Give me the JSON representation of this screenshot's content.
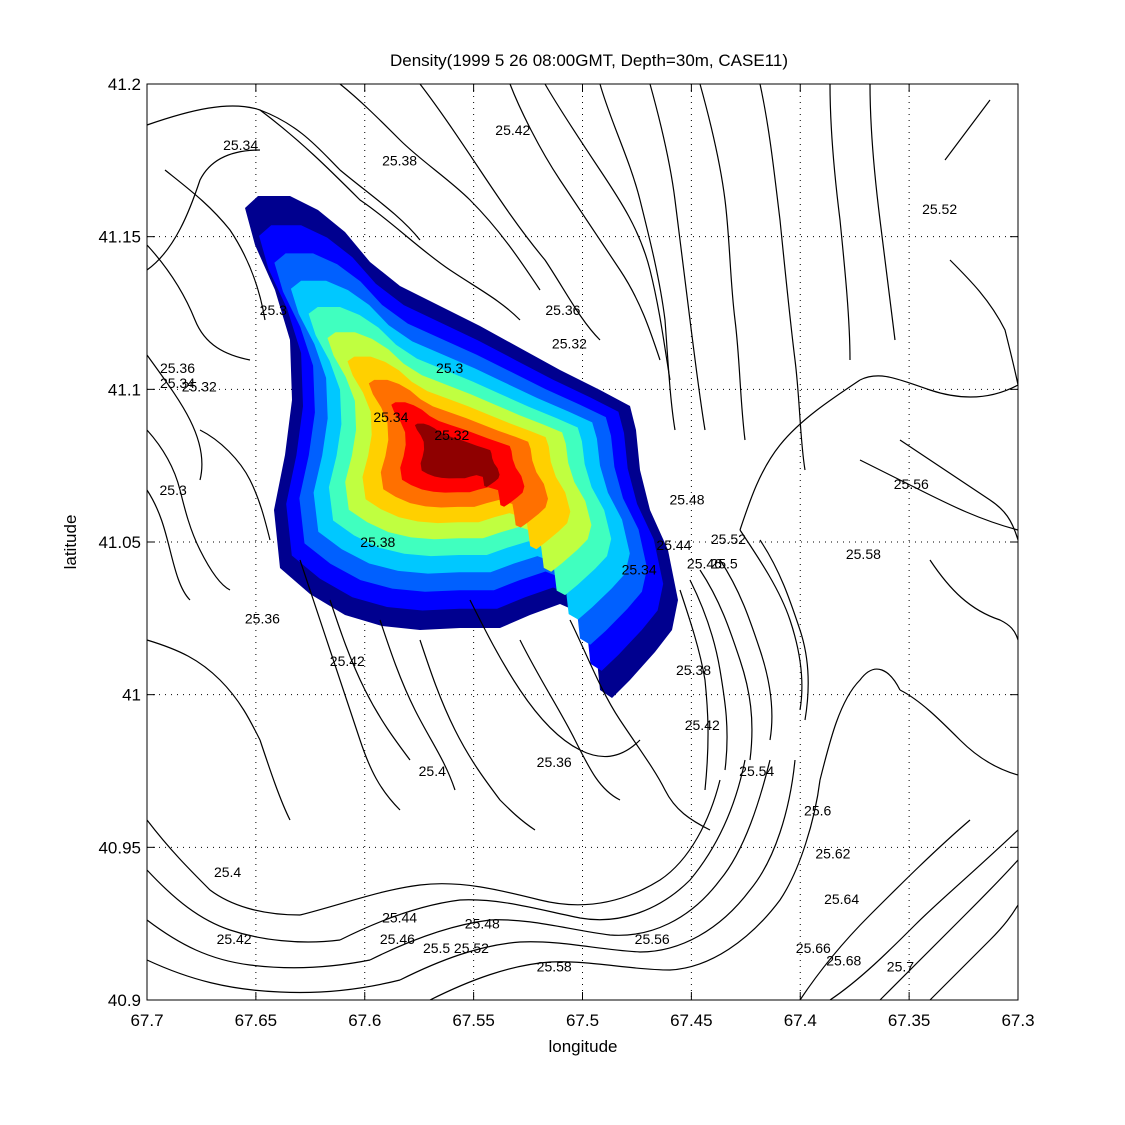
{
  "chart_data": {
    "type": "contour",
    "title": "Density(1999   5   26 08:00GMT, Depth=30m, CASE11)",
    "xlabel": "longitude",
    "ylabel": "latitude",
    "xlim": [
      67.7,
      67.3
    ],
    "ylim": [
      40.9,
      41.2
    ],
    "x_reversed": true,
    "grid": true,
    "xticks": [
      67.7,
      67.65,
      67.6,
      67.55,
      67.5,
      67.45,
      67.4,
      67.35,
      67.3
    ],
    "xtick_labels": [
      "67.7",
      "67.65",
      "67.6",
      "67.55",
      "67.5",
      "67.45",
      "67.4",
      "67.35",
      "67.3"
    ],
    "yticks": [
      40.9,
      40.95,
      41.0,
      41.05,
      41.1,
      41.15,
      41.2
    ],
    "ytick_labels": [
      "40.9",
      "40.95",
      "41",
      "41.05",
      "41.1",
      "41.15",
      "41.2"
    ],
    "filled_field": {
      "colors": [
        "#00008f",
        "#0000ff",
        "#0060ff",
        "#00c8ff",
        "#40ffbf",
        "#c0ff40",
        "#ffd000",
        "#ff7000",
        "#ff0000",
        "#8f0000"
      ],
      "levels": [
        1,
        2,
        3,
        4,
        5,
        6,
        7,
        8,
        9,
        10
      ],
      "center": {
        "lon": 67.558,
        "lat": 41.078
      }
    },
    "contour_labels": [
      {
        "text": "25.34",
        "lon": 67.657,
        "lat": 41.18
      },
      {
        "text": "25.38",
        "lon": 67.584,
        "lat": 41.175
      },
      {
        "text": "25.42",
        "lon": 67.532,
        "lat": 41.185
      },
      {
        "text": "25.52",
        "lon": 67.336,
        "lat": 41.159
      },
      {
        "text": "25.3",
        "lon": 67.642,
        "lat": 41.126
      },
      {
        "text": "25.36",
        "lon": 67.509,
        "lat": 41.126
      },
      {
        "text": "25.32",
        "lon": 67.506,
        "lat": 41.115
      },
      {
        "text": "25.36",
        "lon": 67.686,
        "lat": 41.107
      },
      {
        "text": "25.34",
        "lon": 67.686,
        "lat": 41.102
      },
      {
        "text": "25.32",
        "lon": 67.676,
        "lat": 41.101
      },
      {
        "text": "25.3",
        "lon": 67.561,
        "lat": 41.107
      },
      {
        "text": "25.34",
        "lon": 67.588,
        "lat": 41.091
      },
      {
        "text": "25.32",
        "lon": 67.56,
        "lat": 41.085
      },
      {
        "text": "25.3",
        "lon": 67.688,
        "lat": 41.067
      },
      {
        "text": "25.48",
        "lon": 67.452,
        "lat": 41.064
      },
      {
        "text": "25.56",
        "lon": 67.349,
        "lat": 41.069
      },
      {
        "text": "25.52",
        "lon": 67.433,
        "lat": 41.051
      },
      {
        "text": "25.38",
        "lon": 67.594,
        "lat": 41.05
      },
      {
        "text": "25.44",
        "lon": 67.458,
        "lat": 41.049
      },
      {
        "text": "25.46",
        "lon": 67.444,
        "lat": 41.043
      },
      {
        "text": "25.5",
        "lon": 67.435,
        "lat": 41.043
      },
      {
        "text": "25.34",
        "lon": 67.474,
        "lat": 41.041
      },
      {
        "text": "25.58",
        "lon": 67.371,
        "lat": 41.046
      },
      {
        "text": "25.36",
        "lon": 67.647,
        "lat": 41.025
      },
      {
        "text": "25.42",
        "lon": 67.608,
        "lat": 41.011
      },
      {
        "text": "25.38",
        "lon": 67.449,
        "lat": 41.008
      },
      {
        "text": "25.42",
        "lon": 67.445,
        "lat": 40.99
      },
      {
        "text": "25.36",
        "lon": 67.513,
        "lat": 40.978
      },
      {
        "text": "25.4",
        "lon": 67.569,
        "lat": 40.975
      },
      {
        "text": "25.54",
        "lon": 67.42,
        "lat": 40.975
      },
      {
        "text": "25.6",
        "lon": 67.392,
        "lat": 40.962
      },
      {
        "text": "25.62",
        "lon": 67.385,
        "lat": 40.948
      },
      {
        "text": "25.4",
        "lon": 67.663,
        "lat": 40.942
      },
      {
        "text": "25.64",
        "lon": 67.381,
        "lat": 40.933
      },
      {
        "text": "25.44",
        "lon": 67.584,
        "lat": 40.927
      },
      {
        "text": "25.48",
        "lon": 67.546,
        "lat": 40.925
      },
      {
        "text": "25.46",
        "lon": 67.585,
        "lat": 40.92
      },
      {
        "text": "25.52",
        "lon": 67.551,
        "lat": 40.917
      },
      {
        "text": "25.5",
        "lon": 67.567,
        "lat": 40.917
      },
      {
        "text": "25.56",
        "lon": 67.468,
        "lat": 40.92
      },
      {
        "text": "25.42",
        "lon": 67.66,
        "lat": 40.92
      },
      {
        "text": "25.66",
        "lon": 67.394,
        "lat": 40.917
      },
      {
        "text": "25.68",
        "lon": 67.38,
        "lat": 40.913
      },
      {
        "text": "25.7",
        "lon": 67.354,
        "lat": 40.911
      },
      {
        "text": "25.58",
        "lon": 67.513,
        "lat": 40.911
      }
    ]
  }
}
